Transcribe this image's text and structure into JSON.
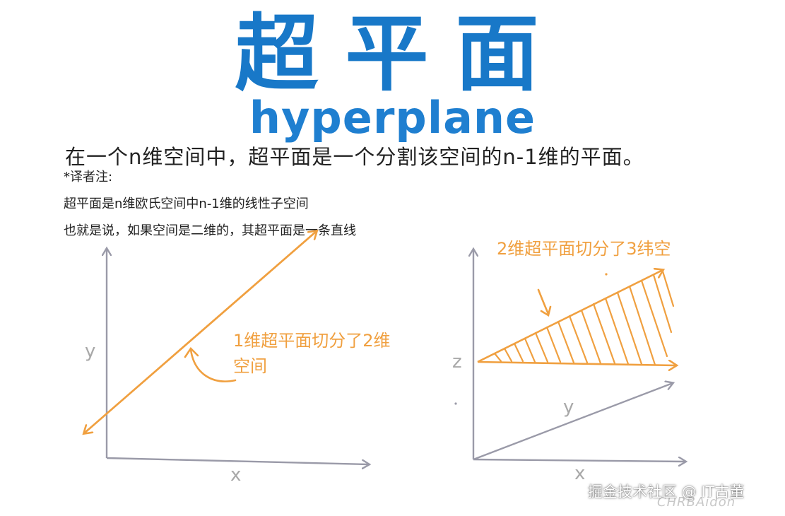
{
  "title": {
    "chinese": "超平面",
    "english": "hyperplane"
  },
  "definition": "在一个n维空间中，超平面是一个分割该空间的n-1维的平面。",
  "translator_note": {
    "heading": "*译者注:",
    "lines": [
      "超平面是n维欧氏空间中n-1维的线性子空间",
      "也就是说，如果空间是二维的，其超平面是一条直线"
    ]
  },
  "diagram_2d": {
    "annotation_line1": "1维超平面切分了2维",
    "annotation_line2": "空间",
    "axis_y": "y",
    "axis_x": "x"
  },
  "diagram_3d": {
    "annotation": "2维超平面切分了3纬空",
    "axis_z": "z",
    "axis_y": "y",
    "axis_x": "x"
  },
  "signature": "CHRBAidon",
  "watermark": "掘金技术社区 @ IT古董",
  "colors": {
    "title_blue": "#1878c8",
    "orange": "#f0a040",
    "axis_gray": "#9a9aa8"
  }
}
